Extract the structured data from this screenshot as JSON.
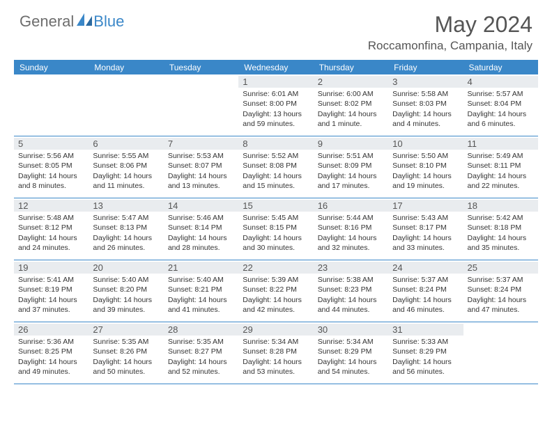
{
  "logo": {
    "part1": "General",
    "part2": "Blue"
  },
  "title": "May 2024",
  "location": "Roccamonfina, Campania, Italy",
  "colors": {
    "accent": "#3a87c8",
    "daynum_bg": "#e9ecef",
    "text_muted": "#555555",
    "text_body": "#333333",
    "logo_gray": "#6d6d6d"
  },
  "dow": [
    "Sunday",
    "Monday",
    "Tuesday",
    "Wednesday",
    "Thursday",
    "Friday",
    "Saturday"
  ],
  "weeks": [
    [
      null,
      null,
      null,
      {
        "n": "1",
        "sr": "6:01 AM",
        "ss": "8:00 PM",
        "dl": "13 hours and 59 minutes."
      },
      {
        "n": "2",
        "sr": "6:00 AM",
        "ss": "8:02 PM",
        "dl": "14 hours and 1 minute."
      },
      {
        "n": "3",
        "sr": "5:58 AM",
        "ss": "8:03 PM",
        "dl": "14 hours and 4 minutes."
      },
      {
        "n": "4",
        "sr": "5:57 AM",
        "ss": "8:04 PM",
        "dl": "14 hours and 6 minutes."
      }
    ],
    [
      {
        "n": "5",
        "sr": "5:56 AM",
        "ss": "8:05 PM",
        "dl": "14 hours and 8 minutes."
      },
      {
        "n": "6",
        "sr": "5:55 AM",
        "ss": "8:06 PM",
        "dl": "14 hours and 11 minutes."
      },
      {
        "n": "7",
        "sr": "5:53 AM",
        "ss": "8:07 PM",
        "dl": "14 hours and 13 minutes."
      },
      {
        "n": "8",
        "sr": "5:52 AM",
        "ss": "8:08 PM",
        "dl": "14 hours and 15 minutes."
      },
      {
        "n": "9",
        "sr": "5:51 AM",
        "ss": "8:09 PM",
        "dl": "14 hours and 17 minutes."
      },
      {
        "n": "10",
        "sr": "5:50 AM",
        "ss": "8:10 PM",
        "dl": "14 hours and 19 minutes."
      },
      {
        "n": "11",
        "sr": "5:49 AM",
        "ss": "8:11 PM",
        "dl": "14 hours and 22 minutes."
      }
    ],
    [
      {
        "n": "12",
        "sr": "5:48 AM",
        "ss": "8:12 PM",
        "dl": "14 hours and 24 minutes."
      },
      {
        "n": "13",
        "sr": "5:47 AM",
        "ss": "8:13 PM",
        "dl": "14 hours and 26 minutes."
      },
      {
        "n": "14",
        "sr": "5:46 AM",
        "ss": "8:14 PM",
        "dl": "14 hours and 28 minutes."
      },
      {
        "n": "15",
        "sr": "5:45 AM",
        "ss": "8:15 PM",
        "dl": "14 hours and 30 minutes."
      },
      {
        "n": "16",
        "sr": "5:44 AM",
        "ss": "8:16 PM",
        "dl": "14 hours and 32 minutes."
      },
      {
        "n": "17",
        "sr": "5:43 AM",
        "ss": "8:17 PM",
        "dl": "14 hours and 33 minutes."
      },
      {
        "n": "18",
        "sr": "5:42 AM",
        "ss": "8:18 PM",
        "dl": "14 hours and 35 minutes."
      }
    ],
    [
      {
        "n": "19",
        "sr": "5:41 AM",
        "ss": "8:19 PM",
        "dl": "14 hours and 37 minutes."
      },
      {
        "n": "20",
        "sr": "5:40 AM",
        "ss": "8:20 PM",
        "dl": "14 hours and 39 minutes."
      },
      {
        "n": "21",
        "sr": "5:40 AM",
        "ss": "8:21 PM",
        "dl": "14 hours and 41 minutes."
      },
      {
        "n": "22",
        "sr": "5:39 AM",
        "ss": "8:22 PM",
        "dl": "14 hours and 42 minutes."
      },
      {
        "n": "23",
        "sr": "5:38 AM",
        "ss": "8:23 PM",
        "dl": "14 hours and 44 minutes."
      },
      {
        "n": "24",
        "sr": "5:37 AM",
        "ss": "8:24 PM",
        "dl": "14 hours and 46 minutes."
      },
      {
        "n": "25",
        "sr": "5:37 AM",
        "ss": "8:24 PM",
        "dl": "14 hours and 47 minutes."
      }
    ],
    [
      {
        "n": "26",
        "sr": "5:36 AM",
        "ss": "8:25 PM",
        "dl": "14 hours and 49 minutes."
      },
      {
        "n": "27",
        "sr": "5:35 AM",
        "ss": "8:26 PM",
        "dl": "14 hours and 50 minutes."
      },
      {
        "n": "28",
        "sr": "5:35 AM",
        "ss": "8:27 PM",
        "dl": "14 hours and 52 minutes."
      },
      {
        "n": "29",
        "sr": "5:34 AM",
        "ss": "8:28 PM",
        "dl": "14 hours and 53 minutes."
      },
      {
        "n": "30",
        "sr": "5:34 AM",
        "ss": "8:29 PM",
        "dl": "14 hours and 54 minutes."
      },
      {
        "n": "31",
        "sr": "5:33 AM",
        "ss": "8:29 PM",
        "dl": "14 hours and 56 minutes."
      },
      null
    ]
  ],
  "labels": {
    "sunrise": "Sunrise:",
    "sunset": "Sunset:",
    "daylight": "Daylight:"
  }
}
